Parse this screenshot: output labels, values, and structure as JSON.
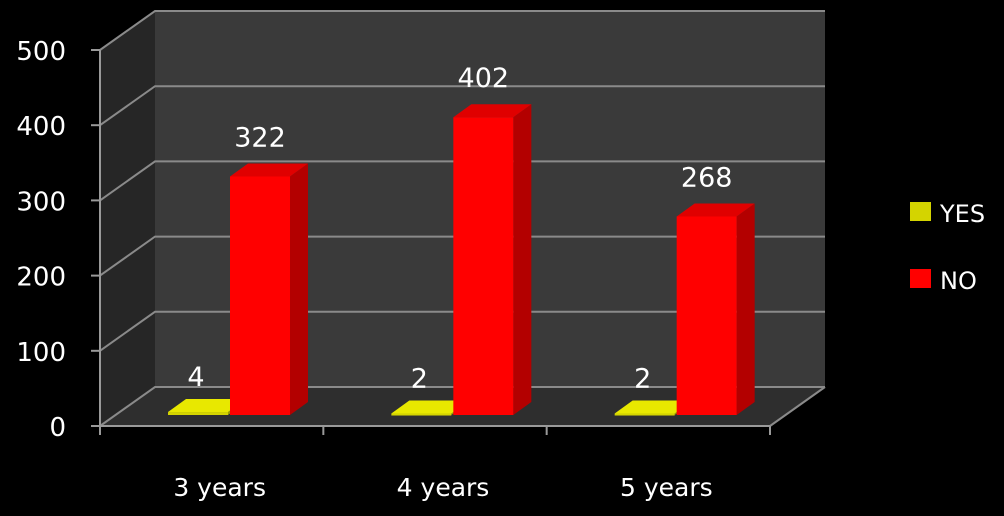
{
  "chart_data": {
    "type": "bar",
    "style": "3d-clustered-column",
    "categories": [
      "3 years",
      "4 years",
      "5 years"
    ],
    "series": [
      {
        "name": "YES",
        "values": [
          4,
          2,
          2
        ],
        "color": "#d4d400"
      },
      {
        "name": "NO",
        "values": [
          322,
          402,
          268
        ],
        "color": "#ff0000"
      }
    ],
    "ylim": [
      0,
      500
    ],
    "yticks": [
      "0",
      "100",
      "200",
      "300",
      "400",
      "500"
    ],
    "grid": true,
    "legend": "right",
    "data_labels": true,
    "background": "#000000",
    "wall_color": "#3a3a3a"
  }
}
